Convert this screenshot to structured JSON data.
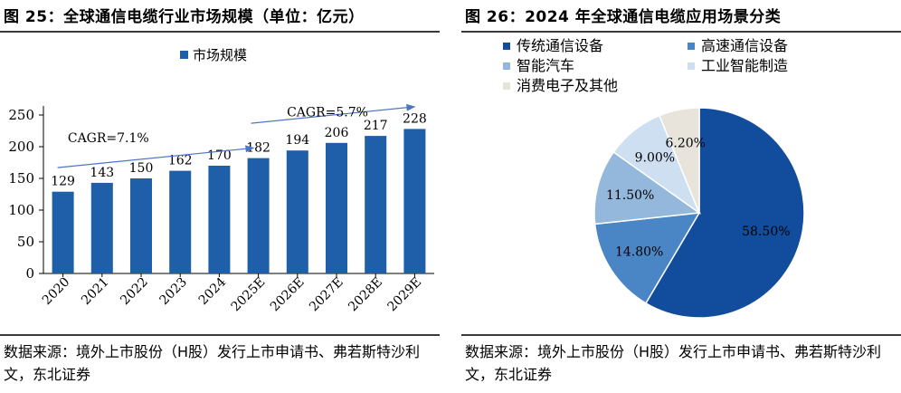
{
  "colors": {
    "bar": "#1f5ea8",
    "arrow": "#4a76c4",
    "axis": "#000000",
    "pie": [
      "#114d9c",
      "#4a86c6",
      "#94b7dc",
      "#cddff1",
      "#e8e4dc"
    ]
  },
  "left": {
    "title": "图 25：全球通信电缆行业市场规模（单位：亿元）",
    "source": "数据来源：境外上市股份（H股）发行上市申请书、弗若斯特沙利文，东北证券",
    "annotations": [
      {
        "text": "CAGR=7.1%"
      },
      {
        "text": "CAGR=5.7%"
      }
    ]
  },
  "right": {
    "title": "图 26：2024 年全球通信电缆应用场景分类",
    "source": "数据来源：境外上市股份（H股）发行上市申请书、弗若斯特沙利文，东北证券"
  },
  "chart_data": [
    {
      "type": "bar",
      "title": "全球通信电缆行业市场规模（单位：亿元）",
      "categories": [
        "2020",
        "2021",
        "2022",
        "2023",
        "2024",
        "2025E",
        "2026E",
        "2027E",
        "2028E",
        "2029E"
      ],
      "series": [
        {
          "name": "市场规模",
          "values": [
            129,
            143,
            150,
            162,
            170,
            182,
            194,
            206,
            217,
            228
          ]
        }
      ],
      "yticks": [
        0,
        50,
        100,
        150,
        200,
        250
      ],
      "ylim": [
        0,
        250
      ],
      "xlabel": "",
      "ylabel": "",
      "legend": "top-center"
    },
    {
      "type": "pie",
      "title": "2024 年全球通信电缆应用场景分类",
      "labels": [
        "传统通信设备",
        "高速通信设备",
        "智能汽车",
        "工业智能制造",
        "消费电子及其他"
      ],
      "values": [
        58.5,
        14.8,
        11.5,
        9.0,
        6.2
      ],
      "value_labels": [
        "58.50%",
        "14.80%",
        "11.50%",
        "9.00%",
        "6.20%"
      ],
      "legend": "top"
    }
  ]
}
